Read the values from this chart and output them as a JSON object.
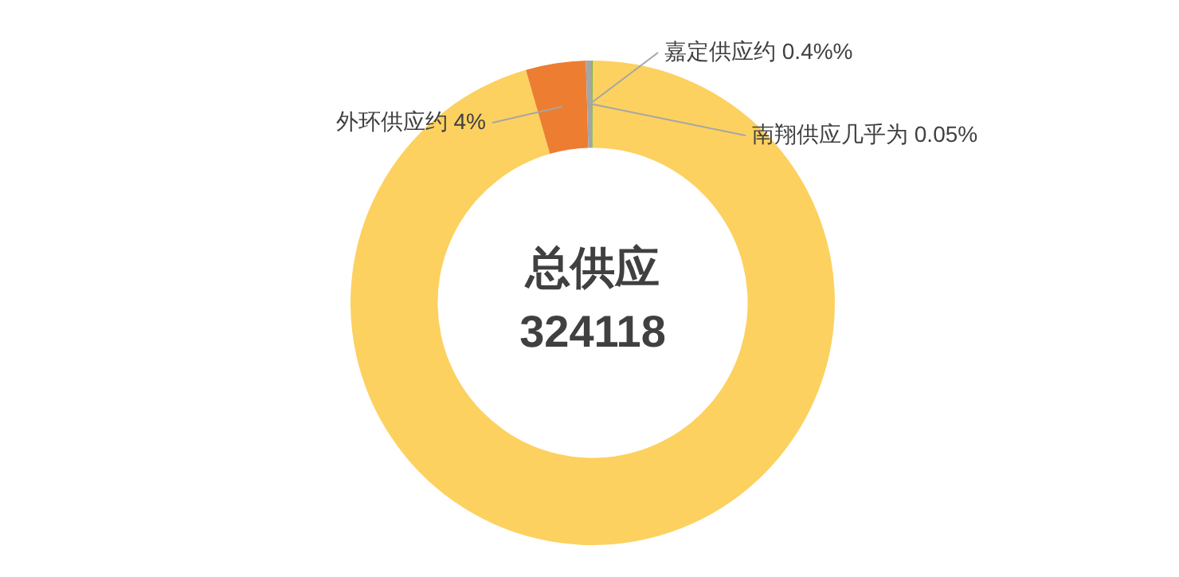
{
  "chart_data": {
    "type": "donut",
    "categories": [
      null,
      "外环供应约 4%",
      "嘉定供应约 0.4%%",
      "南翔供应几乎为 0.05%"
    ],
    "values": [
      95.55,
      4,
      0.4,
      0.05
    ],
    "colors": [
      "#fdd15f",
      "#ed7d31",
      "#a5a5a5",
      "#70ad47"
    ],
    "annotations": [
      "总供应",
      "324118"
    ],
    "legend": false
  }
}
